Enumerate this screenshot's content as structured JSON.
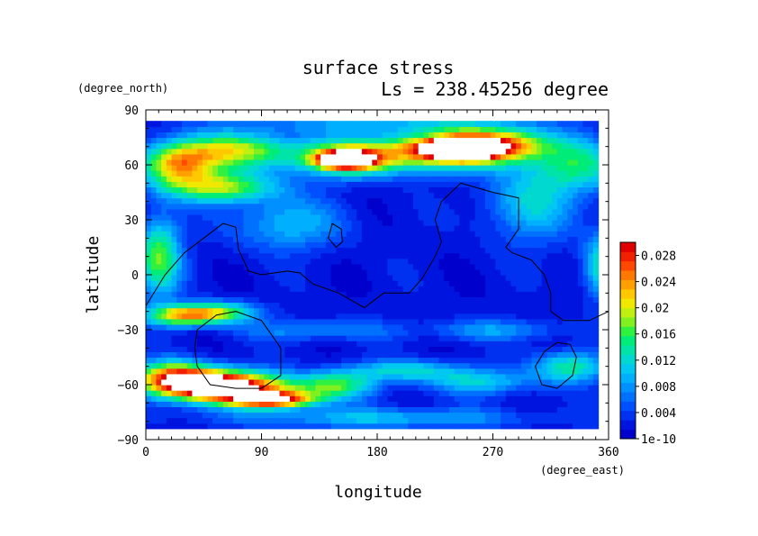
{
  "chart_data": {
    "type": "heatmap",
    "title": "surface stress",
    "subtitle": "Ls = 238.45256 degree",
    "xlabel": "longitude",
    "ylabel": "latitude",
    "xunits": "(degree_east)",
    "yunits": "(degree_north)",
    "xlim": [
      0,
      360
    ],
    "ylim": [
      -90,
      90
    ],
    "xticks": [
      "0",
      "90",
      "180",
      "270",
      "360"
    ],
    "xtick_values": [
      0,
      90,
      180,
      270,
      360
    ],
    "yticks": [
      "90",
      "60",
      "30",
      "0",
      "−30",
      "−60",
      "−90"
    ],
    "ytick_values": [
      90,
      60,
      30,
      0,
      -30,
      -60,
      -90
    ],
    "data_extent_lat": [
      -84,
      84
    ],
    "colorbar": {
      "labels": [
        "0.028",
        "0.024",
        "0.02",
        "0.016",
        "0.012",
        "0.008",
        "0.004",
        "1e-10"
      ],
      "label_values": [
        0.028,
        0.024,
        0.02,
        0.016,
        0.012,
        0.008,
        0.004,
        0.0
      ],
      "range": [
        0,
        0.03
      ],
      "colors": [
        "#0000cd",
        "#0014e0",
        "#0030f0",
        "#0050ff",
        "#0070ff",
        "#0090ff",
        "#00b0ff",
        "#00c8f0",
        "#00d8d0",
        "#00e4a8",
        "#00ec78",
        "#30f040",
        "#80f020",
        "#c0f010",
        "#f0e800",
        "#ffc800",
        "#ffa000",
        "#ff7800",
        "#ff4800",
        "#f02000",
        "#e00000"
      ]
    },
    "field_features": [
      {
        "lon": 155,
        "lat": 63,
        "value": 0.032,
        "sx": 14,
        "sy": 3
      },
      {
        "lon": 245,
        "lat": 69,
        "value": 0.032,
        "sx": 18,
        "sy": 3
      },
      {
        "lon": 235,
        "lat": 68,
        "value": 0.022,
        "sx": 40,
        "sy": 7
      },
      {
        "lon": 270,
        "lat": 72,
        "value": 0.018,
        "sx": 30,
        "sy": 6
      },
      {
        "lon": 160,
        "lat": 64,
        "value": 0.018,
        "sx": 30,
        "sy": 7
      },
      {
        "lon": 25,
        "lat": 60,
        "value": 0.019,
        "sx": 20,
        "sy": 8
      },
      {
        "lon": 70,
        "lat": 68,
        "value": 0.017,
        "sx": 35,
        "sy": 7
      },
      {
        "lon": 60,
        "lat": 48,
        "value": 0.016,
        "sx": 30,
        "sy": 6
      },
      {
        "lon": 340,
        "lat": 60,
        "value": 0.011,
        "sx": 25,
        "sy": 10
      },
      {
        "lon": 300,
        "lat": 40,
        "value": 0.009,
        "sx": 25,
        "sy": 15
      },
      {
        "lon": 110,
        "lat": 28,
        "value": 0.008,
        "sx": 30,
        "sy": 10
      },
      {
        "lon": 10,
        "lat": 10,
        "value": 0.015,
        "sx": 12,
        "sy": 15
      },
      {
        "lon": 355,
        "lat": 5,
        "value": 0.012,
        "sx": 10,
        "sy": 12
      },
      {
        "lon": 30,
        "lat": -22,
        "value": 0.02,
        "sx": 20,
        "sy": 4
      },
      {
        "lon": 60,
        "lat": -20,
        "value": 0.012,
        "sx": 20,
        "sy": 4
      },
      {
        "lon": 50,
        "lat": -60,
        "value": 0.024,
        "sx": 30,
        "sy": 6
      },
      {
        "lon": 100,
        "lat": -68,
        "value": 0.024,
        "sx": 22,
        "sy": 3
      },
      {
        "lon": 20,
        "lat": -55,
        "value": 0.018,
        "sx": 20,
        "sy": 6
      },
      {
        "lon": 80,
        "lat": -62,
        "value": 0.016,
        "sx": 40,
        "sy": 6
      },
      {
        "lon": 150,
        "lat": -60,
        "value": 0.011,
        "sx": 20,
        "sy": 5
      },
      {
        "lon": 200,
        "lat": -52,
        "value": 0.01,
        "sx": 30,
        "sy": 4
      },
      {
        "lon": 260,
        "lat": -58,
        "value": 0.009,
        "sx": 30,
        "sy": 5
      },
      {
        "lon": 330,
        "lat": -50,
        "value": 0.012,
        "sx": 20,
        "sy": 6
      },
      {
        "lon": 130,
        "lat": -30,
        "value": 0.006,
        "sx": 40,
        "sy": 4
      },
      {
        "lon": 270,
        "lat": -30,
        "value": 0.006,
        "sx": 40,
        "sy": 4
      },
      {
        "lon": 180,
        "lat": -78,
        "value": 0.008,
        "sx": 80,
        "sy": 4
      },
      {
        "lon": 180,
        "lat": 82,
        "value": 0.006,
        "sx": 80,
        "sy": 3
      }
    ],
    "contours": [
      [
        [
          0,
          -17
        ],
        [
          15,
          0
        ],
        [
          30,
          12
        ],
        [
          45,
          20
        ],
        [
          60,
          28
        ],
        [
          70,
          26
        ],
        [
          72,
          14
        ],
        [
          80,
          2
        ],
        [
          90,
          0
        ],
        [
          110,
          2
        ],
        [
          120,
          1
        ],
        [
          130,
          -5
        ],
        [
          150,
          -10
        ],
        [
          170,
          -18
        ],
        [
          185,
          -10
        ],
        [
          205,
          -10
        ],
        [
          215,
          -2
        ],
        [
          225,
          10
        ],
        [
          230,
          18
        ],
        [
          225,
          30
        ],
        [
          230,
          40
        ],
        [
          245,
          50
        ],
        [
          270,
          45
        ],
        [
          290,
          42
        ],
        [
          290,
          25
        ],
        [
          280,
          15
        ],
        [
          285,
          12
        ],
        [
          300,
          8
        ],
        [
          310,
          0
        ],
        [
          315,
          -10
        ],
        [
          315,
          -20
        ],
        [
          325,
          -25
        ],
        [
          345,
          -25
        ],
        [
          360,
          -20
        ]
      ],
      [
        [
          40,
          -30
        ],
        [
          55,
          -22
        ],
        [
          70,
          -20
        ],
        [
          90,
          -25
        ],
        [
          105,
          -40
        ],
        [
          105,
          -55
        ],
        [
          90,
          -62
        ],
        [
          70,
          -62
        ],
        [
          50,
          -60
        ],
        [
          40,
          -50
        ],
        [
          38,
          -40
        ],
        [
          40,
          -30
        ]
      ],
      [
        [
          145,
          28
        ],
        [
          152,
          25
        ],
        [
          153,
          18
        ],
        [
          148,
          15
        ],
        [
          142,
          20
        ],
        [
          145,
          28
        ]
      ],
      [
        [
          320,
          -37
        ],
        [
          330,
          -38
        ],
        [
          335,
          -45
        ],
        [
          332,
          -55
        ],
        [
          320,
          -62
        ],
        [
          308,
          -60
        ],
        [
          303,
          -50
        ],
        [
          310,
          -42
        ],
        [
          320,
          -37
        ]
      ]
    ]
  }
}
